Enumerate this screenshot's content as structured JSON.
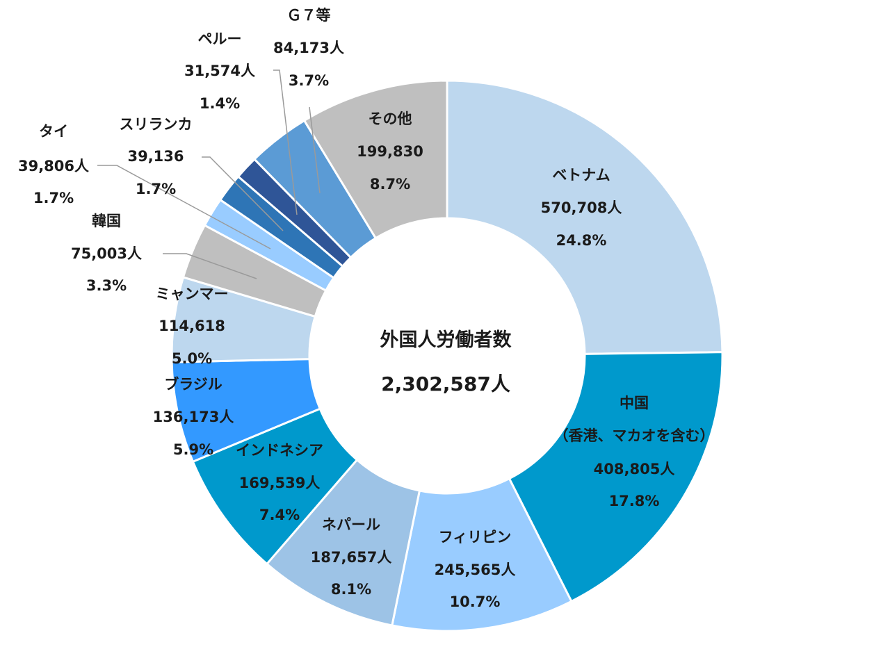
{
  "chart_data": {
    "type": "pie",
    "center": {
      "title": "外国人労働者数",
      "total": "2,302,587人"
    },
    "slices": [
      {
        "name": "ベトナム",
        "value": 570708,
        "count_label": "570,708人",
        "pct_label": "24.8%",
        "color": "#bdd7ee"
      },
      {
        "name": "中国",
        "name2": "（香港、マカオを含む）",
        "value": 408805,
        "count_label": "408,805人",
        "pct_label": "17.8%",
        "color": "#0099cc"
      },
      {
        "name": "フィリピン",
        "value": 245565,
        "count_label": "245,565人",
        "pct_label": "10.7%",
        "color": "#99ccff"
      },
      {
        "name": "ネパール",
        "value": 187657,
        "count_label": "187,657人",
        "pct_label": "8.1%",
        "color": "#9dc3e6"
      },
      {
        "name": "インドネシア",
        "value": 169539,
        "count_label": "169,539人",
        "pct_label": "7.4%",
        "color": "#0099cc"
      },
      {
        "name": "ブラジル",
        "value": 136173,
        "count_label": "136,173人",
        "pct_label": "5.9%",
        "color": "#3399ff"
      },
      {
        "name": "ミャンマー",
        "value": 114618,
        "count_label": "114,618",
        "pct_label": "5.0%",
        "color": "#bdd7ee"
      },
      {
        "name": "韓国",
        "value": 75003,
        "count_label": "75,003人",
        "pct_label": "3.3%",
        "color": "#bfbfbf"
      },
      {
        "name": "タイ",
        "value": 39806,
        "count_label": "39,806人",
        "pct_label": "1.7%",
        "color": "#99ccff"
      },
      {
        "name": "スリランカ",
        "value": 39136,
        "count_label": "39,136",
        "pct_label": "1.7%",
        "color": "#2e75b6"
      },
      {
        "name": "ペルー",
        "value": 31574,
        "count_label": "31,574人",
        "pct_label": "1.4%",
        "color": "#2f5597"
      },
      {
        "name": "Ｇ７等",
        "value": 84173,
        "count_label": "84,173人",
        "pct_label": "3.7%",
        "color": "#5b9bd5"
      },
      {
        "name": "その他",
        "value": 199830,
        "count_label": "199,830",
        "pct_label": "8.7%",
        "color": "#bfbfbf"
      }
    ]
  }
}
